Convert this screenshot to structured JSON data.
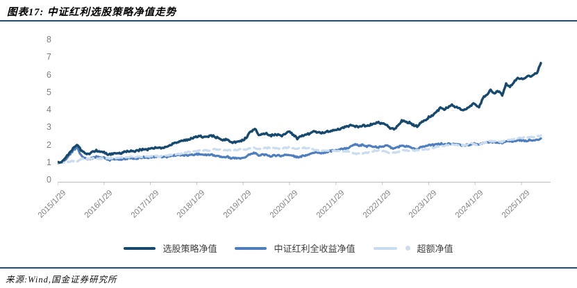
{
  "header": {
    "title": "图表17: 中证红利选股策略净值走势"
  },
  "footer": {
    "source": "来源:Wind,国金证券研究所"
  },
  "colors": {
    "accent_rule": "#1F4E79",
    "axis_line": "#BFBFBF",
    "tick_text": "#7F7F7F",
    "legend_text": "#3F3F3F",
    "series_dark": "#16496D",
    "series_medium": "#4E7EBE",
    "series_light": "#C9DCF0"
  },
  "chart_data": {
    "type": "line",
    "title": "中证红利选股策略净值走势",
    "xlabel": "",
    "ylabel": "",
    "ylim": [
      0,
      8
    ],
    "y_ticks": [
      0,
      1,
      2,
      3,
      4,
      5,
      6,
      7,
      8
    ],
    "grid": false,
    "legend_position": "bottom",
    "x_tick_labels": [
      "2015/1/29",
      "2016/1/29",
      "2017/1/29",
      "2018/1/29",
      "2019/1/29",
      "2020/1/29",
      "2021/1/29",
      "2022/1/29",
      "2023/1/29",
      "2024/1/29",
      "2025/1/29"
    ],
    "x": [
      "2015/1",
      "2015/2",
      "2015/3",
      "2015/4",
      "2015/5",
      "2015/6",
      "2015/7",
      "2015/8",
      "2015/9",
      "2015/10",
      "2015/11",
      "2015/12",
      "2016/1",
      "2016/2",
      "2016/3",
      "2016/4",
      "2016/5",
      "2016/6",
      "2016/7",
      "2016/8",
      "2016/9",
      "2016/10",
      "2016/11",
      "2016/12",
      "2017/1",
      "2017/2",
      "2017/3",
      "2017/4",
      "2017/5",
      "2017/6",
      "2017/7",
      "2017/8",
      "2017/9",
      "2017/10",
      "2017/11",
      "2017/12",
      "2018/1",
      "2018/2",
      "2018/3",
      "2018/4",
      "2018/5",
      "2018/6",
      "2018/7",
      "2018/8",
      "2018/9",
      "2018/10",
      "2018/11",
      "2018/12",
      "2019/1",
      "2019/2",
      "2019/3",
      "2019/4",
      "2019/5",
      "2019/6",
      "2019/7",
      "2019/8",
      "2019/9",
      "2019/10",
      "2019/11",
      "2019/12",
      "2020/1",
      "2020/2",
      "2020/3",
      "2020/4",
      "2020/5",
      "2020/6",
      "2020/7",
      "2020/8",
      "2020/9",
      "2020/10",
      "2020/11",
      "2020/12",
      "2021/1",
      "2021/2",
      "2021/3",
      "2021/4",
      "2021/5",
      "2021/6",
      "2021/7",
      "2021/8",
      "2021/9",
      "2021/10",
      "2021/11",
      "2021/12",
      "2022/1",
      "2022/2",
      "2022/3",
      "2022/4",
      "2022/5",
      "2022/6",
      "2022/7",
      "2022/8",
      "2022/9",
      "2022/10",
      "2022/11",
      "2022/12",
      "2023/1",
      "2023/2",
      "2023/3",
      "2023/4",
      "2023/5",
      "2023/6",
      "2023/7",
      "2023/8",
      "2023/9",
      "2023/10",
      "2023/11",
      "2023/12",
      "2024/1",
      "2024/2",
      "2024/3",
      "2024/4",
      "2024/5",
      "2024/6",
      "2024/7",
      "2024/8",
      "2024/9",
      "2024/10",
      "2024/11",
      "2024/12",
      "2025/1",
      "2025/2",
      "2025/3",
      "2025/4",
      "2025/5",
      "2025/6"
    ],
    "series": [
      {
        "name": "选股策略净值",
        "color": "#16496D",
        "style": "solid",
        "values": [
          1.0,
          1.08,
          1.25,
          1.55,
          1.85,
          2.05,
          1.75,
          1.55,
          1.5,
          1.6,
          1.7,
          1.65,
          1.62,
          1.45,
          1.52,
          1.58,
          1.55,
          1.6,
          1.65,
          1.7,
          1.68,
          1.72,
          1.78,
          1.75,
          1.8,
          1.85,
          1.88,
          1.85,
          1.9,
          2.0,
          2.1,
          2.15,
          2.25,
          2.3,
          2.35,
          2.4,
          2.5,
          2.55,
          2.45,
          2.5,
          2.55,
          2.45,
          2.4,
          2.3,
          2.35,
          2.15,
          2.2,
          2.25,
          2.3,
          2.5,
          2.8,
          2.95,
          2.6,
          2.65,
          2.7,
          2.55,
          2.6,
          2.6,
          2.55,
          2.7,
          2.75,
          2.6,
          2.4,
          2.55,
          2.6,
          2.65,
          2.8,
          2.75,
          2.7,
          2.75,
          2.8,
          2.85,
          2.9,
          2.95,
          3.0,
          3.1,
          3.15,
          3.1,
          3.05,
          3.15,
          3.1,
          3.2,
          3.25,
          3.3,
          3.25,
          3.2,
          3.0,
          2.9,
          3.1,
          3.4,
          3.35,
          3.3,
          3.15,
          3.1,
          3.3,
          3.45,
          3.6,
          3.7,
          3.9,
          4.15,
          4.05,
          4.2,
          4.3,
          4.2,
          4.1,
          4.0,
          4.15,
          4.3,
          4.4,
          4.15,
          4.7,
          4.9,
          5.15,
          5.0,
          5.1,
          4.85,
          5.5,
          5.35,
          5.6,
          5.85,
          5.8,
          5.85,
          5.95,
          6.0,
          6.15,
          6.7
        ]
      },
      {
        "name": "中证红利全收益净值",
        "color": "#4E7EBE",
        "style": "solid",
        "values": [
          1.0,
          1.05,
          1.2,
          1.45,
          1.7,
          1.9,
          1.45,
          1.25,
          1.2,
          1.28,
          1.35,
          1.32,
          1.3,
          1.15,
          1.2,
          1.23,
          1.2,
          1.22,
          1.25,
          1.28,
          1.26,
          1.28,
          1.32,
          1.3,
          1.32,
          1.35,
          1.36,
          1.34,
          1.33,
          1.38,
          1.42,
          1.44,
          1.46,
          1.45,
          1.44,
          1.45,
          1.5,
          1.48,
          1.44,
          1.46,
          1.45,
          1.38,
          1.36,
          1.32,
          1.35,
          1.25,
          1.28,
          1.26,
          1.3,
          1.4,
          1.52,
          1.58,
          1.45,
          1.46,
          1.45,
          1.38,
          1.42,
          1.42,
          1.4,
          1.45,
          1.46,
          1.4,
          1.32,
          1.38,
          1.4,
          1.45,
          1.58,
          1.6,
          1.58,
          1.6,
          1.65,
          1.7,
          1.72,
          1.78,
          1.8,
          1.85,
          1.95,
          2.05,
          1.98,
          2.05,
          1.95,
          1.95,
          1.92,
          1.9,
          1.95,
          1.98,
          1.9,
          1.82,
          1.9,
          2.0,
          1.95,
          1.95,
          1.85,
          1.8,
          1.9,
          1.95,
          2.0,
          2.02,
          2.05,
          2.1,
          2.05,
          2.08,
          2.1,
          2.05,
          2.03,
          2.0,
          2.03,
          2.05,
          2.1,
          2.05,
          2.15,
          2.18,
          2.2,
          2.15,
          2.18,
          2.12,
          2.25,
          2.2,
          2.25,
          2.3,
          2.28,
          2.25,
          2.3,
          2.28,
          2.32,
          2.4
        ]
      },
      {
        "name": "超额净值",
        "color": "#C9DCF0",
        "style": "dashed",
        "values": [
          1.0,
          1.03,
          1.04,
          1.07,
          1.09,
          1.08,
          1.21,
          1.24,
          1.25,
          1.25,
          1.26,
          1.25,
          1.25,
          1.26,
          1.27,
          1.28,
          1.29,
          1.31,
          1.32,
          1.33,
          1.33,
          1.34,
          1.35,
          1.35,
          1.36,
          1.37,
          1.38,
          1.38,
          1.43,
          1.45,
          1.48,
          1.49,
          1.54,
          1.59,
          1.63,
          1.66,
          1.67,
          1.72,
          1.7,
          1.71,
          1.76,
          1.78,
          1.76,
          1.74,
          1.74,
          1.72,
          1.72,
          1.79,
          1.77,
          1.79,
          1.84,
          1.87,
          1.79,
          1.82,
          1.86,
          1.85,
          1.83,
          1.83,
          1.82,
          1.86,
          1.88,
          1.86,
          1.82,
          1.85,
          1.86,
          1.83,
          1.77,
          1.72,
          1.71,
          1.72,
          1.7,
          1.68,
          1.69,
          1.66,
          1.67,
          1.68,
          1.62,
          1.51,
          1.54,
          1.54,
          1.59,
          1.64,
          1.69,
          1.74,
          1.67,
          1.62,
          1.58,
          1.59,
          1.63,
          1.7,
          1.72,
          1.69,
          1.7,
          1.72,
          1.74,
          1.77,
          1.8,
          1.83,
          1.9,
          1.98,
          1.98,
          2.02,
          2.05,
          2.05,
          2.02,
          2.0,
          2.04,
          2.1,
          2.05,
          2.0,
          2.12,
          2.18,
          2.25,
          2.22,
          2.24,
          2.2,
          2.32,
          2.3,
          2.36,
          2.42,
          2.42,
          2.45,
          2.44,
          2.48,
          2.5,
          2.57
        ]
      }
    ]
  }
}
